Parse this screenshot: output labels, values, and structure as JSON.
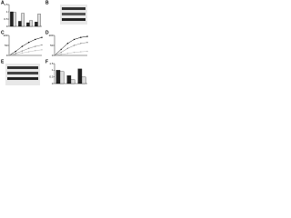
{
  "panel_labels": [
    "A",
    "B",
    "C",
    "D",
    "E",
    "F"
  ],
  "chart_data": [
    {
      "type": "bar",
      "categories": [
        null,
        null,
        null,
        null
      ],
      "ylim": [
        0,
        1.5
      ],
      "yticks": [
        0,
        0.5,
        1,
        1.5
      ],
      "series": [
        {
          "color": "#222222",
          "values": [
            1.0,
            0.35,
            0.25,
            0.3
          ]
        },
        {
          "color": "#dddddd",
          "values": [
            0.95,
            0.9,
            0.4,
            0.85
          ]
        }
      ]
    },
    {
      "type": "line",
      "x": [
        0,
        2,
        4,
        6,
        8,
        10
      ],
      "xlim": [
        0,
        10
      ],
      "ylim": [
        0,
        100
      ],
      "yticks": [
        0,
        50,
        100
      ],
      "series": [
        {
          "color": "#000000",
          "values": [
            0,
            20,
            45,
            65,
            80,
            90
          ]
        },
        {
          "color": "#888888",
          "values": [
            0,
            10,
            22,
            35,
            45,
            52
          ]
        },
        {
          "color": "#bbbbbb",
          "values": [
            0,
            5,
            12,
            18,
            24,
            28
          ]
        }
      ]
    },
    {
      "type": "line",
      "x": [
        0,
        2,
        4,
        6,
        8,
        10
      ],
      "xlim": [
        0,
        10
      ],
      "ylim": [
        0,
        100
      ],
      "yticks": [
        0,
        50,
        100
      ],
      "series": [
        {
          "color": "#000000",
          "values": [
            0,
            30,
            60,
            80,
            90,
            95
          ]
        },
        {
          "color": "#888888",
          "values": [
            0,
            15,
            35,
            50,
            60,
            65
          ]
        },
        {
          "color": "#bbbbbb",
          "values": [
            0,
            5,
            10,
            15,
            18,
            20
          ]
        }
      ]
    },
    {
      "type": "bar",
      "categories": [
        null,
        null,
        null
      ],
      "ylim": [
        0,
        1.5
      ],
      "yticks": [
        0,
        0.5,
        1,
        1.5
      ],
      "series": [
        {
          "color": "#222222",
          "values": [
            1.0,
            0.6,
            1.1
          ]
        },
        {
          "color": "#dddddd",
          "values": [
            0.9,
            0.3,
            0.5
          ]
        }
      ]
    }
  ]
}
